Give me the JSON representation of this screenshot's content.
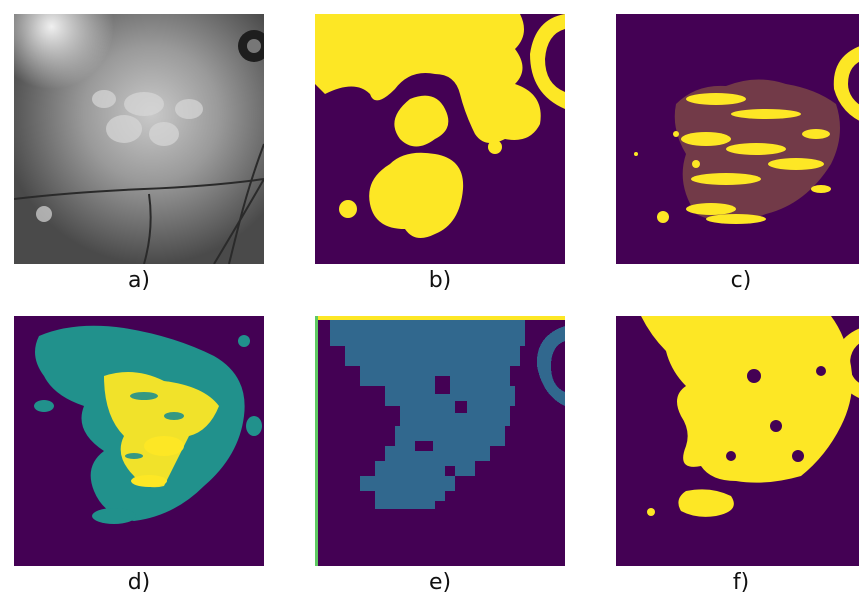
{
  "figure": {
    "panels": [
      {
        "id": "a",
        "label": "a)",
        "kind": "grayscale-retina-photo"
      },
      {
        "id": "b",
        "label": "b)",
        "kind": "binary-mask"
      },
      {
        "id": "c",
        "label": "c)",
        "kind": "binary-mask"
      },
      {
        "id": "d",
        "label": "d)",
        "kind": "three-class-mask"
      },
      {
        "id": "e",
        "label": "e)",
        "kind": "two-class-mask-blocky"
      },
      {
        "id": "f",
        "label": "f)",
        "kind": "binary-mask"
      }
    ],
    "colors": {
      "background_purple": "#440154",
      "yellow": "#fde725",
      "teal": "#21918c",
      "steel_blue": "#31688e",
      "green_edge": "#5ec962"
    }
  }
}
